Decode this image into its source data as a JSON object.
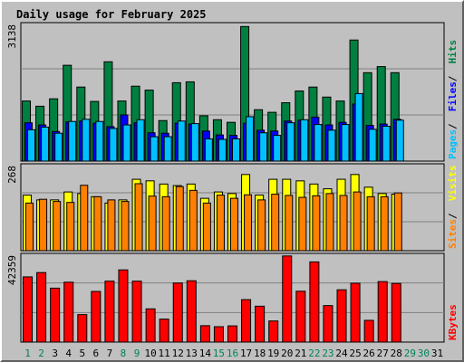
{
  "chart_data": {
    "type": "bar",
    "title": "Daily usage for February 2025",
    "categories": [
      "1",
      "2",
      "3",
      "4",
      "5",
      "6",
      "7",
      "8",
      "9",
      "10",
      "11",
      "12",
      "13",
      "14",
      "15",
      "16",
      "17",
      "18",
      "19",
      "20",
      "21",
      "22",
      "23",
      "24",
      "25",
      "26",
      "27",
      "28",
      "29",
      "30",
      "31"
    ],
    "weekend_days": [
      1,
      2,
      8,
      9,
      15,
      16,
      22,
      23,
      29,
      30
    ],
    "grid": true,
    "panels": [
      {
        "name": "requests",
        "max_label": "3138",
        "ylim": [
          0,
          3138
        ],
        "side_labels": [
          "Pages",
          "Files",
          "Hits"
        ],
        "series": [
          {
            "name": "Hits",
            "color": "#008040",
            "values": [
              1380,
              1260,
              1430,
              2200,
              1700,
              1370,
              2280,
              1380,
              1720,
              1630,
              930,
              1800,
              1820,
              1040,
              950,
              890,
              3090,
              1180,
              1120,
              1340,
              1610,
              1700,
              1470,
              1380,
              2780,
              2030,
              2170,
              2030
            ]
          },
          {
            "name": "Files",
            "color": "#0000ff",
            "values": [
              880,
              830,
              680,
              900,
              920,
              870,
              790,
              1060,
              880,
              650,
              640,
              870,
              850,
              690,
              600,
              590,
              870,
              710,
              690,
              920,
              940,
              1010,
              830,
              890,
              1310,
              820,
              850,
              960
            ]
          },
          {
            "name": "Pages",
            "color": "#00c0ff",
            "values": [
              720,
              780,
              640,
              910,
              960,
              910,
              750,
              830,
              950,
              560,
              560,
              920,
              860,
              510,
              500,
              510,
              1020,
              650,
              590,
              880,
              950,
              840,
              710,
              840,
              1550,
              730,
              800,
              940
            ]
          }
        ]
      },
      {
        "name": "visitors",
        "max_label": "268",
        "ylim": [
          0,
          268
        ],
        "side_labels": [
          "Sites",
          "Visits"
        ],
        "series": [
          {
            "name": "Visits",
            "color": "#ffff00",
            "values": [
              175,
              160,
              160,
              185,
              180,
              170,
              150,
              160,
              225,
              220,
              210,
              205,
              210,
              165,
              185,
              180,
              240,
              175,
              225,
              225,
              220,
              210,
              195,
              225,
              240,
              200,
              180,
              178
            ]
          },
          {
            "name": "Sites",
            "color": "#ff8000",
            "values": [
              150,
              162,
              155,
              152,
              206,
              170,
              160,
              155,
              211,
              172,
              170,
              202,
              190,
              150,
              175,
              165,
              176,
              160,
              178,
              174,
              168,
              173,
              180,
              174,
              185,
              170,
              170,
              182
            ]
          }
        ]
      },
      {
        "name": "kbytes",
        "max_label": "42359",
        "ylim": [
          0,
          42359
        ],
        "side_labels": [
          "KBytes"
        ],
        "series": [
          {
            "name": "KBytes",
            "color": "#ff0000",
            "values": [
              31800,
              33900,
              26300,
              29200,
              13400,
              24700,
              29700,
              35200,
              29700,
              16200,
              11200,
              28800,
              29900,
              8000,
              7500,
              7900,
              20700,
              17500,
              10300,
              42000,
              24800,
              39100,
              17800,
              25500,
              28700,
              10600,
              29500,
              28600
            ]
          }
        ]
      }
    ]
  }
}
